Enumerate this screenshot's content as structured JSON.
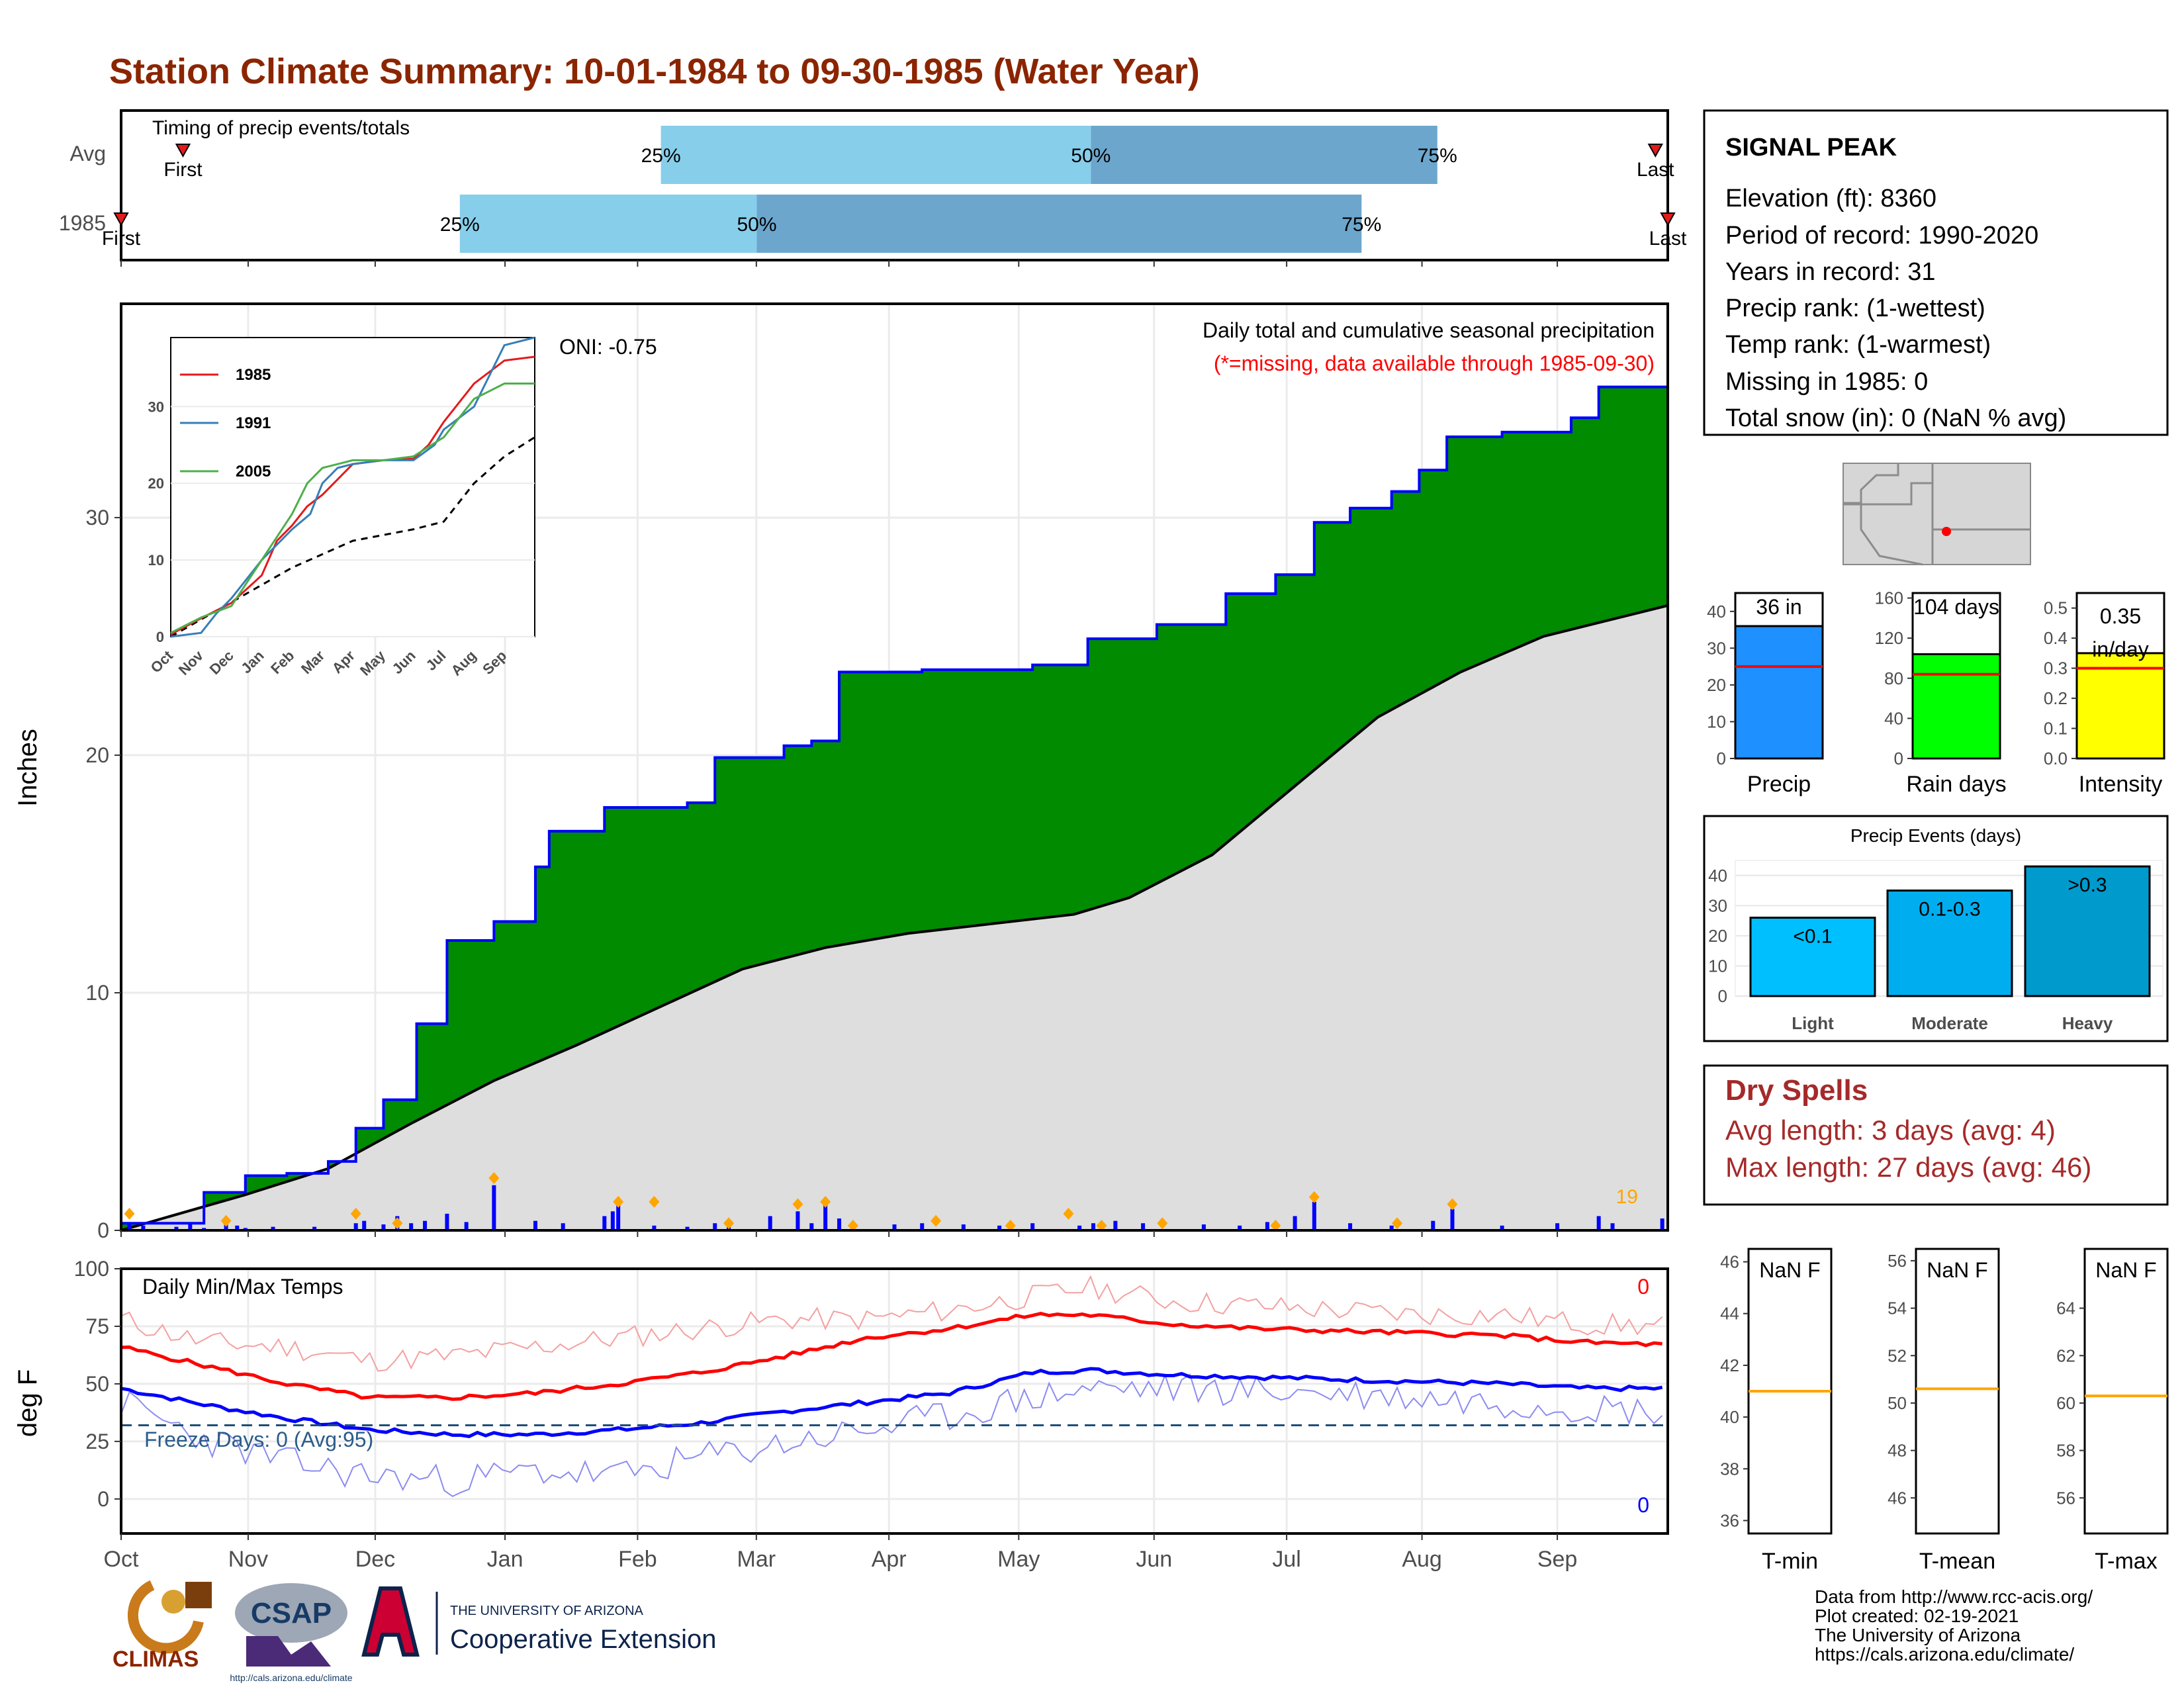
{
  "title": "Station Climate Summary: 10-01-1984 to 09-30-1985 (Water Year)",
  "months": [
    "Oct",
    "Nov",
    "Dec",
    "Jan",
    "Feb",
    "Mar",
    "Apr",
    "May",
    "Jun",
    "Jul",
    "Aug",
    "Sep"
  ],
  "timing": {
    "label": "Timing of precip events/totals",
    "rows": [
      {
        "name": "Avg",
        "first_label": "First",
        "last_label": "Last",
        "first": 0.04,
        "q25": 0.349,
        "q50": 0.627,
        "q75": 0.851,
        "last": 0.992
      },
      {
        "name": "1985",
        "first_label": "First",
        "last_label": "Last",
        "first": 0.0,
        "q25": 0.219,
        "q50": 0.411,
        "q75": 0.802,
        "last": 1.0
      }
    ],
    "pct_labels": [
      "25%",
      "50%",
      "75%"
    ]
  },
  "precip": {
    "ylabel": "Inches",
    "oni": "ONI: -0.75",
    "header1": "Daily total and cumulative seasonal precipitation",
    "header2": "(*=missing, data available through 1985-09-30)",
    "count_label": "19",
    "ylim": [
      0,
      39
    ],
    "yticks": [
      0,
      10,
      20,
      30
    ],
    "cum1985": [
      [
        0,
        0.3
      ],
      [
        30,
        1.6
      ],
      [
        45,
        2.3
      ],
      [
        60,
        2.4
      ],
      [
        75,
        2.9
      ],
      [
        85,
        4.3
      ],
      [
        95,
        5.5
      ],
      [
        107,
        8.7
      ],
      [
        118,
        12.2
      ],
      [
        135,
        13.0
      ],
      [
        150,
        15.3
      ],
      [
        155,
        16.8
      ],
      [
        175,
        17.8
      ],
      [
        205,
        18.0
      ],
      [
        215,
        19.9
      ],
      [
        240,
        20.4
      ],
      [
        250,
        20.6
      ],
      [
        260,
        23.5
      ],
      [
        290,
        23.6
      ],
      [
        330,
        23.8
      ],
      [
        350,
        24.9
      ],
      [
        375,
        25.5
      ],
      [
        400,
        26.8
      ],
      [
        418,
        27.6
      ],
      [
        432,
        29.8
      ],
      [
        445,
        30.4
      ],
      [
        460,
        31.1
      ],
      [
        470,
        32.0
      ],
      [
        480,
        33.4
      ],
      [
        500,
        33.6
      ],
      [
        525,
        34.2
      ],
      [
        535,
        35.5
      ],
      [
        560,
        35.6
      ]
    ],
    "cumAvg": [
      [
        0,
        0.0
      ],
      [
        45,
        1.5
      ],
      [
        75,
        2.6
      ],
      [
        105,
        4.5
      ],
      [
        135,
        6.3
      ],
      [
        165,
        7.8
      ],
      [
        195,
        9.4
      ],
      [
        225,
        11.0
      ],
      [
        255,
        11.9
      ],
      [
        285,
        12.5
      ],
      [
        315,
        12.9
      ],
      [
        345,
        13.3
      ],
      [
        365,
        14.0
      ],
      [
        395,
        15.8
      ],
      [
        425,
        18.7
      ],
      [
        455,
        21.6
      ],
      [
        485,
        23.5
      ],
      [
        515,
        25.0
      ],
      [
        560,
        26.3
      ]
    ],
    "daily_events": [
      [
        3,
        0.3
      ],
      [
        8,
        0.2
      ],
      [
        20,
        0.15
      ],
      [
        25,
        0.25
      ],
      [
        30,
        0.1
      ],
      [
        38,
        0.3
      ],
      [
        42,
        0.2
      ],
      [
        45,
        0.1
      ],
      [
        55,
        0.15
      ],
      [
        70,
        0.15
      ],
      [
        85,
        0.3
      ],
      [
        88,
        0.4
      ],
      [
        95,
        0.25
      ],
      [
        100,
        0.6
      ],
      [
        105,
        0.3
      ],
      [
        110,
        0.4
      ],
      [
        118,
        0.7
      ],
      [
        125,
        0.35
      ],
      [
        135,
        1.9
      ],
      [
        150,
        0.4
      ],
      [
        160,
        0.3
      ],
      [
        175,
        0.6
      ],
      [
        178,
        0.8
      ],
      [
        180,
        1.1
      ],
      [
        193,
        0.2
      ],
      [
        205,
        0.15
      ],
      [
        215,
        0.3
      ],
      [
        220,
        0.4
      ],
      [
        235,
        0.6
      ],
      [
        245,
        0.8
      ],
      [
        250,
        0.3
      ],
      [
        255,
        1.1
      ],
      [
        260,
        0.5
      ],
      [
        280,
        0.25
      ],
      [
        290,
        0.3
      ],
      [
        305,
        0.25
      ],
      [
        318,
        0.2
      ],
      [
        330,
        0.3
      ],
      [
        347,
        0.2
      ],
      [
        352,
        0.3
      ],
      [
        360,
        0.4
      ],
      [
        370,
        0.3
      ],
      [
        392,
        0.25
      ],
      [
        405,
        0.2
      ],
      [
        415,
        0.35
      ],
      [
        425,
        0.6
      ],
      [
        432,
        1.2
      ],
      [
        445,
        0.3
      ],
      [
        460,
        0.2
      ],
      [
        475,
        0.4
      ],
      [
        482,
        0.9
      ],
      [
        500,
        0.2
      ],
      [
        520,
        0.3
      ],
      [
        535,
        0.6
      ],
      [
        540,
        0.3
      ],
      [
        558,
        0.5
      ]
    ],
    "event_marks": [
      [
        3,
        0.7
      ],
      [
        38,
        0.4
      ],
      [
        85,
        0.7
      ],
      [
        100,
        0.3
      ],
      [
        135,
        2.2
      ],
      [
        180,
        1.2
      ],
      [
        193,
        1.2
      ],
      [
        220,
        0.3
      ],
      [
        245,
        1.1
      ],
      [
        255,
        1.2
      ],
      [
        265,
        0.2
      ],
      [
        295,
        0.4
      ],
      [
        322,
        0.2
      ],
      [
        343,
        0.7
      ],
      [
        355,
        0.2
      ],
      [
        377,
        0.3
      ],
      [
        418,
        0.2
      ],
      [
        432,
        1.4
      ],
      [
        462,
        0.3
      ],
      [
        482,
        1.1
      ]
    ]
  },
  "inset": {
    "xlabels": [
      "Oct",
      "Nov",
      "Dec",
      "Jan",
      "Feb",
      "Mar",
      "Apr",
      "May",
      "Jun",
      "Jul",
      "Aug",
      "Sep"
    ],
    "yticks": [
      0,
      10,
      20,
      30
    ],
    "ylim": [
      0,
      39
    ],
    "series": [
      {
        "name": "1985",
        "color": "#E41A1C",
        "points": [
          [
            0,
            0.3
          ],
          [
            1,
            2.4
          ],
          [
            2,
            4.4
          ],
          [
            3,
            8.0
          ],
          [
            3.5,
            12.5
          ],
          [
            4,
            14.5
          ],
          [
            4.5,
            17.0
          ],
          [
            5,
            18.5
          ],
          [
            6,
            22.5
          ],
          [
            7,
            23.0
          ],
          [
            8,
            23.2
          ],
          [
            8.5,
            25
          ],
          [
            9,
            28
          ],
          [
            10,
            33
          ],
          [
            11,
            36
          ],
          [
            12,
            36.5
          ]
        ]
      },
      {
        "name": "1991",
        "color": "#377EB8",
        "points": [
          [
            0,
            0
          ],
          [
            1,
            0.5
          ],
          [
            1.5,
            3
          ],
          [
            2,
            5
          ],
          [
            3,
            10
          ],
          [
            4,
            14
          ],
          [
            4.6,
            16
          ],
          [
            5,
            20
          ],
          [
            5.5,
            22
          ],
          [
            6,
            22.5
          ],
          [
            7,
            23
          ],
          [
            8,
            23
          ],
          [
            8.7,
            25
          ],
          [
            9,
            27
          ],
          [
            10,
            30
          ],
          [
            11,
            38
          ],
          [
            12,
            39
          ]
        ]
      },
      {
        "name": "2005",
        "color": "#4DAF4A",
        "points": [
          [
            0,
            0.5
          ],
          [
            1,
            2.5
          ],
          [
            2,
            4
          ],
          [
            3,
            10
          ],
          [
            4,
            16
          ],
          [
            4.5,
            20
          ],
          [
            5,
            22
          ],
          [
            6,
            23
          ],
          [
            7,
            23
          ],
          [
            8,
            23.5
          ],
          [
            9,
            26
          ],
          [
            10,
            31
          ],
          [
            11,
            33
          ],
          [
            12,
            33
          ]
        ]
      }
    ],
    "avg_points": [
      [
        0,
        0
      ],
      [
        2,
        4.5
      ],
      [
        4,
        9
      ],
      [
        6,
        12.5
      ],
      [
        8,
        14
      ],
      [
        9,
        15
      ],
      [
        10,
        20
      ],
      [
        11,
        23.5
      ],
      [
        12,
        26
      ]
    ]
  },
  "temps": {
    "title": "Daily Min/Max Temps",
    "ylabel": "deg F",
    "freeze": "Freeze Days: 0 (Avg:95)",
    "max_count": "0",
    "min_count": "0",
    "yticks": [
      0,
      25,
      50,
      75,
      100
    ],
    "ylim": [
      -15,
      100
    ],
    "freeze_line": 32,
    "avg_max": [
      [
        0,
        66
      ],
      [
        30,
        58
      ],
      [
        60,
        50
      ],
      [
        90,
        44
      ],
      [
        120,
        44
      ],
      [
        150,
        46
      ],
      [
        180,
        50
      ],
      [
        210,
        55
      ],
      [
        240,
        62
      ],
      [
        270,
        70
      ],
      [
        300,
        74
      ],
      [
        330,
        80
      ],
      [
        350,
        80
      ],
      [
        380,
        76
      ],
      [
        410,
        74
      ],
      [
        440,
        73
      ],
      [
        470,
        72
      ],
      [
        500,
        71
      ],
      [
        530,
        68
      ],
      [
        560,
        67
      ]
    ],
    "avg_min": [
      [
        0,
        48
      ],
      [
        30,
        41
      ],
      [
        60,
        35
      ],
      [
        90,
        30
      ],
      [
        120,
        28
      ],
      [
        150,
        28
      ],
      [
        180,
        30
      ],
      [
        210,
        33
      ],
      [
        240,
        38
      ],
      [
        270,
        42
      ],
      [
        300,
        46
      ],
      [
        330,
        55
      ],
      [
        350,
        56
      ],
      [
        380,
        54
      ],
      [
        410,
        53
      ],
      [
        440,
        52
      ],
      [
        470,
        51
      ],
      [
        500,
        50
      ],
      [
        530,
        48
      ],
      [
        560,
        48
      ]
    ],
    "obs_max": [
      [
        0,
        78
      ],
      [
        30,
        68
      ],
      [
        60,
        66
      ],
      [
        90,
        60
      ],
      [
        120,
        62
      ],
      [
        150,
        66
      ],
      [
        180,
        70
      ],
      [
        210,
        74
      ],
      [
        240,
        78
      ],
      [
        270,
        78
      ],
      [
        300,
        82
      ],
      [
        330,
        88
      ],
      [
        350,
        92
      ],
      [
        380,
        86
      ],
      [
        410,
        84
      ],
      [
        440,
        82
      ],
      [
        470,
        80
      ],
      [
        500,
        80
      ],
      [
        530,
        76
      ],
      [
        560,
        75
      ]
    ],
    "obs_min": [
      [
        0,
        42
      ],
      [
        30,
        26
      ],
      [
        60,
        16
      ],
      [
        90,
        10
      ],
      [
        120,
        8
      ],
      [
        150,
        12
      ],
      [
        180,
        10
      ],
      [
        210,
        18
      ],
      [
        240,
        24
      ],
      [
        270,
        30
      ],
      [
        300,
        36
      ],
      [
        330,
        44
      ],
      [
        350,
        48
      ],
      [
        380,
        48
      ],
      [
        410,
        47
      ],
      [
        440,
        46
      ],
      [
        470,
        44
      ],
      [
        500,
        42
      ],
      [
        530,
        40
      ],
      [
        560,
        38
      ]
    ]
  },
  "info": {
    "station": "SIGNAL PEAK",
    "lines": [
      "Elevation (ft): 8360",
      "Period of record: 1990-2020",
      "Years in record: 31",
      "Precip rank:  (1-wettest)",
      "Temp rank:  (1-warmest)",
      "Missing in 1985: 0",
      "Total snow (in): 0 (NaN % avg)"
    ]
  },
  "gauges": [
    {
      "name": "Precip",
      "value_label": "36 in",
      "value": 36,
      "avg": 25,
      "ymax": 45,
      "yticks": [
        0,
        10,
        20,
        30,
        40
      ],
      "color": "#1E90FF"
    },
    {
      "name": "Rain days",
      "value_label": "104 days",
      "value": 104,
      "avg": 84,
      "ymax": 165,
      "yticks": [
        0,
        40,
        80,
        120,
        160
      ],
      "color": "#00FF00"
    },
    {
      "name": "Intensity",
      "value_label": "0.35 in/day",
      "value": 0.35,
      "avg": 0.3,
      "ymax": 0.55,
      "yticks": [
        "0.0",
        "0.1",
        "0.2",
        "0.3",
        "0.4",
        "0.5"
      ],
      "color": "#FFFF00"
    }
  ],
  "events": {
    "title": "Precip Events (days)",
    "yticks": [
      0,
      10,
      20,
      30,
      40
    ],
    "ymax": 45,
    "bars": [
      {
        "name": "Light",
        "label": "<0.1",
        "value": 26,
        "color": "#00BFFF"
      },
      {
        "name": "Moderate",
        "label": "0.1-0.3",
        "value": 35,
        "color": "#00AEEF"
      },
      {
        "name": "Heavy",
        "label": ">0.3",
        "value": 43,
        "color": "#009ACD"
      }
    ]
  },
  "dry": {
    "title": "Dry Spells",
    "avg": "Avg length: 3 days (avg: 4)",
    "max": "Max length: 27 days (avg: 46)"
  },
  "tstats": [
    {
      "name": "T-min",
      "value_label": "NaN F",
      "avg": 41,
      "ymin": 35.5,
      "ymax": 46.5,
      "yticks": [
        36,
        38,
        40,
        42,
        44,
        46
      ]
    },
    {
      "name": "T-mean",
      "value_label": "NaN F",
      "avg": 50.6,
      "ymin": 44.5,
      "ymax": 56.5,
      "yticks": [
        46,
        48,
        50,
        52,
        54,
        56
      ]
    },
    {
      "name": "T-max",
      "value_label": "NaN F",
      "avg": 60.3,
      "ymin": 54.5,
      "ymax": 66.5,
      "yticks": [
        56,
        58,
        60,
        62,
        64
      ]
    }
  ],
  "credits": [
    "Data from http://www.rcc-acis.org/",
    "Plot created: 02-19-2021",
    "The University of Arizona",
    "https://cals.arizona.edu/climate/"
  ],
  "logos": {
    "climas": "CLIMAS",
    "csap": "CSAP",
    "csap_url": "http://cals.arizona.edu/climate",
    "ua_small": "THE UNIVERSITY OF ARIZONA",
    "ua_big": "Cooperative Extension"
  },
  "colors": {
    "green": "#008B00",
    "blue_line": "#0000FF",
    "avg_fill": "#DEDEDE",
    "title": "#8B2500",
    "event_marker": "#FFA500",
    "dry": "#A52A2A"
  }
}
